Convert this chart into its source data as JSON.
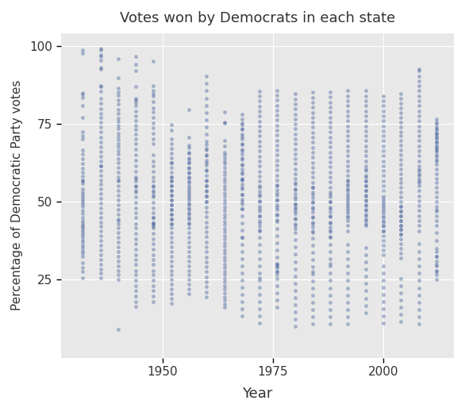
{
  "title": "Votes won by Democrats in each state",
  "xlabel": "Year",
  "ylabel": "Percentage of Democratic Party votes",
  "bg_color": "#E8E8E8",
  "grid_color": "#FFFFFF",
  "dot_color": "#3D5A99",
  "dot_alpha": 0.4,
  "dot_size": 12,
  "xlim": [
    1927,
    2016
  ],
  "ylim": [
    0,
    104
  ],
  "xticks": [
    1950,
    1975,
    2000
  ],
  "yticks": [
    25,
    50,
    75,
    100
  ],
  "elections": [
    1932,
    1936,
    1940,
    1944,
    1948,
    1952,
    1956,
    1960,
    1964,
    1968,
    1972,
    1976,
    1980,
    1984,
    1988,
    1992,
    1996,
    2000,
    2004,
    2008,
    2012
  ],
  "state_data": {
    "1932": [
      84.8,
      84.4,
      83.3,
      80.9,
      77.0,
      72.4,
      71.1,
      70.0,
      66.5,
      65.2,
      63.7,
      62.1,
      60.8,
      59.5,
      58.2,
      57.0,
      56.5,
      55.8,
      54.2,
      53.1,
      52.3,
      51.5,
      50.9,
      50.0,
      49.3,
      48.5,
      47.2,
      46.3,
      45.0,
      44.0,
      43.2,
      42.5,
      41.8,
      41.0,
      40.3,
      39.5,
      38.7,
      37.9,
      37.0,
      36.1,
      35.2,
      34.3,
      33.4,
      32.5,
      30.5,
      29.0,
      27.5,
      25.5,
      97.5,
      98.5
    ],
    "1936": [
      98.6,
      97.0,
      96.5,
      95.4,
      93.0,
      87.1,
      86.9,
      85.4,
      83.0,
      81.5,
      79.8,
      78.2,
      76.9,
      75.4,
      73.8,
      72.3,
      70.7,
      69.1,
      67.6,
      66.0,
      64.5,
      63.0,
      61.5,
      60.0,
      58.5,
      57.0,
      55.5,
      54.0,
      52.5,
      51.0,
      49.5,
      48.0,
      46.5,
      45.0,
      43.5,
      42.0,
      40.5,
      39.0,
      37.5,
      36.0,
      34.5,
      33.0,
      31.5,
      30.0,
      28.5,
      27.0,
      25.5,
      61.5,
      92.5,
      99.0
    ],
    "1940": [
      95.7,
      89.8,
      86.3,
      85.1,
      84.0,
      82.7,
      81.4,
      79.4,
      78.2,
      76.8,
      75.6,
      74.5,
      73.4,
      72.0,
      70.9,
      69.8,
      68.6,
      67.5,
      66.3,
      65.2,
      63.7,
      62.5,
      61.0,
      59.5,
      58.0,
      56.5,
      55.0,
      53.5,
      52.0,
      50.5,
      49.0,
      47.5,
      46.0,
      44.5,
      43.0,
      41.5,
      40.0,
      38.5,
      37.0,
      35.5,
      34.0,
      32.5,
      31.0,
      29.5,
      28.0,
      26.5,
      25.0,
      44.0,
      9.0,
      57.0
    ],
    "1944": [
      81.7,
      82.5,
      83.0,
      80.8,
      79.0,
      77.5,
      75.9,
      74.5,
      73.1,
      71.7,
      70.0,
      68.5,
      66.8,
      65.0,
      63.2,
      61.5,
      59.8,
      58.0,
      56.5,
      54.8,
      53.0,
      51.5,
      49.8,
      48.0,
      46.5,
      44.8,
      43.0,
      41.5,
      39.8,
      38.0,
      36.5,
      34.8,
      33.0,
      31.5,
      29.8,
      28.0,
      26.5,
      24.8,
      23.0,
      21.5,
      19.8,
      18.0,
      16.5,
      53.5,
      55.0,
      57.5,
      92.0,
      94.0,
      96.5,
      87.0
    ],
    "1948": [
      95.1,
      84.5,
      87.2,
      85.5,
      83.8,
      82.1,
      80.0,
      78.7,
      77.0,
      75.3,
      73.6,
      71.9,
      70.2,
      68.5,
      65.0,
      63.0,
      61.5,
      59.8,
      58.0,
      56.5,
      54.8,
      53.0,
      51.5,
      49.8,
      48.0,
      46.5,
      44.8,
      43.0,
      41.5,
      39.8,
      38.0,
      36.5,
      34.8,
      33.0,
      31.5,
      29.8,
      28.0,
      26.5,
      24.8,
      23.0,
      21.5,
      19.8,
      18.0,
      42.8,
      52.0,
      53.5,
      55.0,
      42.0,
      45.0,
      43.5
    ],
    "1952": [
      72.9,
      74.6,
      70.0,
      68.5,
      67.0,
      65.5,
      64.0,
      62.5,
      61.0,
      59.5,
      58.0,
      56.5,
      55.0,
      53.5,
      52.0,
      50.5,
      49.0,
      47.5,
      46.0,
      44.5,
      43.0,
      41.5,
      40.0,
      38.5,
      37.0,
      35.5,
      34.0,
      32.5,
      31.0,
      29.5,
      28.0,
      26.5,
      25.0,
      23.5,
      22.0,
      20.5,
      19.0,
      17.5,
      43.0,
      44.5,
      46.0,
      47.5,
      49.0,
      50.5,
      52.0,
      53.5,
      55.0,
      56.5,
      58.0,
      62.5
    ],
    "1956": [
      68.1,
      65.8,
      63.5,
      62.5,
      61.0,
      59.5,
      58.0,
      56.5,
      55.0,
      53.5,
      52.0,
      50.5,
      49.0,
      47.5,
      46.0,
      44.5,
      43.0,
      41.5,
      40.0,
      38.5,
      37.0,
      35.5,
      34.0,
      32.5,
      31.0,
      29.5,
      28.0,
      26.5,
      25.0,
      23.5,
      22.0,
      20.5,
      43.2,
      44.8,
      46.4,
      48.0,
      49.6,
      51.2,
      52.8,
      54.4,
      56.0,
      57.6,
      59.2,
      60.8,
      62.4,
      64.0,
      65.6,
      67.2,
      70.5,
      79.5
    ],
    "1960": [
      90.1,
      87.8,
      85.5,
      83.2,
      80.9,
      78.6,
      76.3,
      74.0,
      71.7,
      69.4,
      67.1,
      64.8,
      62.5,
      60.2,
      56.8,
      55.0,
      53.5,
      51.8,
      50.0,
      48.3,
      46.7,
      45.1,
      43.5,
      41.9,
      40.3,
      38.7,
      37.1,
      35.5,
      33.9,
      32.3,
      30.7,
      29.1,
      27.5,
      25.9,
      24.3,
      22.7,
      21.1,
      19.5,
      50.1,
      51.8,
      53.4,
      55.1,
      56.7,
      58.4,
      60.0,
      61.7,
      63.3,
      65.0,
      66.6,
      68.3
    ],
    "1964": [
      69.5,
      78.8,
      75.4,
      67.8,
      65.9,
      65.1,
      64.0,
      63.1,
      62.2,
      61.0,
      59.8,
      58.7,
      57.5,
      56.4,
      55.2,
      54.1,
      52.9,
      51.8,
      50.6,
      49.5,
      48.3,
      47.2,
      46.0,
      44.9,
      43.7,
      42.6,
      41.4,
      40.3,
      39.1,
      38.0,
      36.8,
      35.7,
      34.5,
      33.4,
      32.2,
      31.1,
      29.9,
      28.8,
      27.6,
      26.5,
      25.3,
      24.2,
      23.0,
      21.9,
      20.7,
      19.6,
      18.4,
      17.3,
      16.1,
      75.3
    ],
    "1968": [
      13.3,
      15.6,
      17.9,
      20.2,
      22.5,
      24.8,
      27.1,
      29.4,
      31.7,
      34.0,
      36.3,
      38.6,
      40.9,
      43.2,
      45.5,
      47.8,
      50.1,
      52.4,
      54.7,
      57.0,
      59.3,
      61.6,
      63.9,
      66.2,
      68.5,
      70.8,
      73.5,
      75.2,
      47.6,
      49.2,
      50.8,
      52.4,
      54.0,
      55.6,
      57.2,
      58.8,
      60.4,
      62.0,
      63.6,
      65.2,
      66.8,
      68.4,
      70.0,
      71.6,
      73.2,
      74.8,
      76.4,
      78.0,
      57.5,
      38.5
    ],
    "1972": [
      54.7,
      52.4,
      50.1,
      47.8,
      45.5,
      43.2,
      40.9,
      38.6,
      36.3,
      34.0,
      31.7,
      29.4,
      27.1,
      24.8,
      22.5,
      20.2,
      17.9,
      15.6,
      13.3,
      11.0,
      40.6,
      42.2,
      43.8,
      45.4,
      47.0,
      48.6,
      50.2,
      51.8,
      53.4,
      55.0,
      56.6,
      58.2,
      59.8,
      61.4,
      63.0,
      64.6,
      66.2,
      67.8,
      69.4,
      71.0,
      72.6,
      74.2,
      75.8,
      77.4,
      79.0,
      80.6,
      82.2,
      83.8,
      85.4,
      25.6
    ],
    "1976": [
      55.2,
      52.9,
      50.6,
      48.3,
      46.0,
      43.7,
      41.4,
      39.1,
      36.8,
      34.5,
      32.2,
      29.9,
      27.6,
      25.3,
      23.0,
      20.7,
      18.4,
      16.1,
      50.5,
      52.1,
      53.7,
      55.3,
      56.9,
      58.5,
      60.1,
      61.7,
      63.3,
      64.9,
      66.5,
      68.1,
      69.7,
      71.3,
      72.9,
      74.5,
      76.1,
      77.7,
      79.3,
      80.9,
      82.5,
      84.1,
      85.7,
      44.2,
      45.8,
      47.4,
      49.0,
      30.1,
      29.5,
      28.9,
      27.5,
      26.5
    ],
    "1980": [
      56.1,
      53.8,
      51.5,
      49.2,
      46.9,
      44.6,
      42.3,
      40.0,
      37.7,
      35.4,
      33.1,
      30.8,
      28.5,
      26.2,
      23.9,
      21.6,
      19.3,
      17.0,
      14.7,
      12.4,
      10.1,
      41.3,
      42.9,
      44.5,
      46.1,
      47.7,
      49.3,
      50.9,
      52.5,
      54.1,
      55.7,
      57.3,
      58.9,
      60.5,
      62.1,
      63.7,
      65.3,
      66.9,
      68.5,
      70.1,
      71.7,
      73.3,
      74.9,
      76.5,
      78.1,
      79.7,
      81.3,
      82.9,
      84.5,
      48.2
    ],
    "1984": [
      54.5,
      52.2,
      49.9,
      47.6,
      45.3,
      43.0,
      40.7,
      38.4,
      36.1,
      33.8,
      31.5,
      29.2,
      26.9,
      24.6,
      22.3,
      20.0,
      17.7,
      15.4,
      13.1,
      10.8,
      40.2,
      41.8,
      43.4,
      45.0,
      46.6,
      48.2,
      49.8,
      51.4,
      53.0,
      54.6,
      56.2,
      57.8,
      59.4,
      61.0,
      62.6,
      64.2,
      65.8,
      67.4,
      69.0,
      70.6,
      72.2,
      73.8,
      75.4,
      77.0,
      78.6,
      80.2,
      81.8,
      83.4,
      85.0,
      27.6
    ],
    "1988": [
      52.3,
      50.0,
      47.7,
      45.4,
      43.1,
      40.8,
      38.5,
      36.2,
      33.9,
      31.6,
      29.3,
      27.0,
      24.7,
      22.4,
      20.1,
      17.8,
      15.5,
      13.2,
      10.9,
      38.7,
      40.3,
      41.9,
      43.5,
      45.1,
      46.7,
      48.3,
      49.9,
      51.5,
      53.1,
      54.7,
      56.3,
      57.9,
      59.5,
      61.1,
      62.7,
      64.3,
      65.9,
      67.5,
      69.1,
      70.7,
      72.3,
      73.9,
      75.5,
      77.1,
      78.7,
      80.3,
      81.9,
      83.5,
      85.1,
      30.2
    ],
    "1992": [
      36.2,
      33.9,
      31.6,
      29.3,
      27.0,
      24.7,
      22.4,
      20.1,
      17.8,
      15.5,
      13.2,
      10.9,
      40.7,
      42.3,
      43.9,
      45.5,
      47.1,
      48.7,
      50.3,
      51.9,
      53.5,
      55.1,
      56.7,
      58.3,
      59.9,
      61.5,
      63.1,
      64.7,
      66.3,
      67.9,
      69.5,
      71.1,
      72.7,
      74.3,
      75.9,
      77.5,
      79.1,
      80.7,
      82.3,
      83.9,
      85.5,
      45.0,
      46.5,
      48.0,
      49.5,
      51.0,
      52.5,
      54.0,
      55.5,
      57.0
    ],
    "1996": [
      35.2,
      32.9,
      30.6,
      28.3,
      26.0,
      23.7,
      21.4,
      19.1,
      16.8,
      14.5,
      42.3,
      43.9,
      45.5,
      47.1,
      48.7,
      50.3,
      51.9,
      53.5,
      55.1,
      56.7,
      58.3,
      59.9,
      61.5,
      63.1,
      64.7,
      66.3,
      67.9,
      69.5,
      71.1,
      72.7,
      74.3,
      75.9,
      77.5,
      79.1,
      80.7,
      82.3,
      83.9,
      85.5,
      43.0,
      44.5,
      46.0,
      47.5,
      49.0,
      50.5,
      52.0,
      53.5,
      55.0,
      56.5,
      58.0,
      60.5
    ],
    "2000": [
      29.5,
      27.2,
      24.9,
      22.6,
      20.3,
      18.0,
      15.7,
      13.4,
      11.1,
      40.7,
      42.3,
      43.9,
      45.5,
      47.1,
      48.7,
      50.3,
      51.9,
      53.5,
      55.1,
      56.7,
      58.3,
      59.9,
      61.5,
      63.1,
      64.7,
      66.3,
      67.9,
      69.5,
      71.1,
      72.7,
      74.3,
      75.9,
      77.5,
      79.1,
      80.7,
      82.3,
      83.9,
      33.0,
      34.5,
      36.0,
      37.5,
      39.0,
      40.5,
      42.0,
      43.5,
      45.0,
      46.5,
      48.0,
      49.5,
      51.0
    ],
    "2004": [
      25.3,
      23.0,
      20.7,
      18.4,
      16.1,
      13.8,
      11.5,
      39.5,
      41.0,
      42.5,
      44.0,
      45.5,
      47.0,
      48.5,
      50.0,
      51.5,
      53.0,
      54.5,
      56.0,
      57.5,
      59.0,
      60.5,
      62.0,
      63.5,
      65.0,
      66.5,
      68.0,
      69.5,
      71.0,
      72.5,
      74.0,
      75.5,
      77.0,
      78.5,
      80.0,
      81.5,
      83.0,
      84.5,
      32.0,
      33.5,
      35.0,
      36.5,
      38.0,
      39.5,
      41.0,
      42.5,
      44.0,
      45.5,
      47.0,
      48.5
    ],
    "2008": [
      36.5,
      33.9,
      31.6,
      29.3,
      27.0,
      24.7,
      22.4,
      20.1,
      17.8,
      15.5,
      13.2,
      10.9,
      40.7,
      42.3,
      43.9,
      45.5,
      47.1,
      48.7,
      50.3,
      51.9,
      53.5,
      55.1,
      56.7,
      58.3,
      59.9,
      61.5,
      63.1,
      64.7,
      66.3,
      67.9,
      69.5,
      71.1,
      72.7,
      74.3,
      75.9,
      77.5,
      79.1,
      80.7,
      82.3,
      83.9,
      85.5,
      87.1,
      88.7,
      90.3,
      91.9,
      92.5,
      56.0,
      57.5,
      59.0,
      60.5
    ],
    "2012": [
      25.0,
      27.5,
      30.0,
      32.5,
      35.0,
      37.5,
      40.0,
      42.5,
      44.0,
      45.5,
      47.0,
      48.5,
      50.0,
      51.5,
      53.0,
      54.5,
      56.0,
      57.5,
      59.0,
      60.5,
      62.0,
      63.5,
      65.0,
      66.5,
      67.0,
      68.0,
      69.0,
      70.0,
      71.0,
      72.0,
      73.0,
      74.0,
      75.5,
      63.0,
      64.5,
      66.0,
      67.5,
      69.0,
      70.5,
      72.0,
      73.5,
      75.0,
      76.5,
      26.5,
      28.0,
      29.5,
      31.0,
      32.5,
      34.0,
      47.5
    ]
  }
}
